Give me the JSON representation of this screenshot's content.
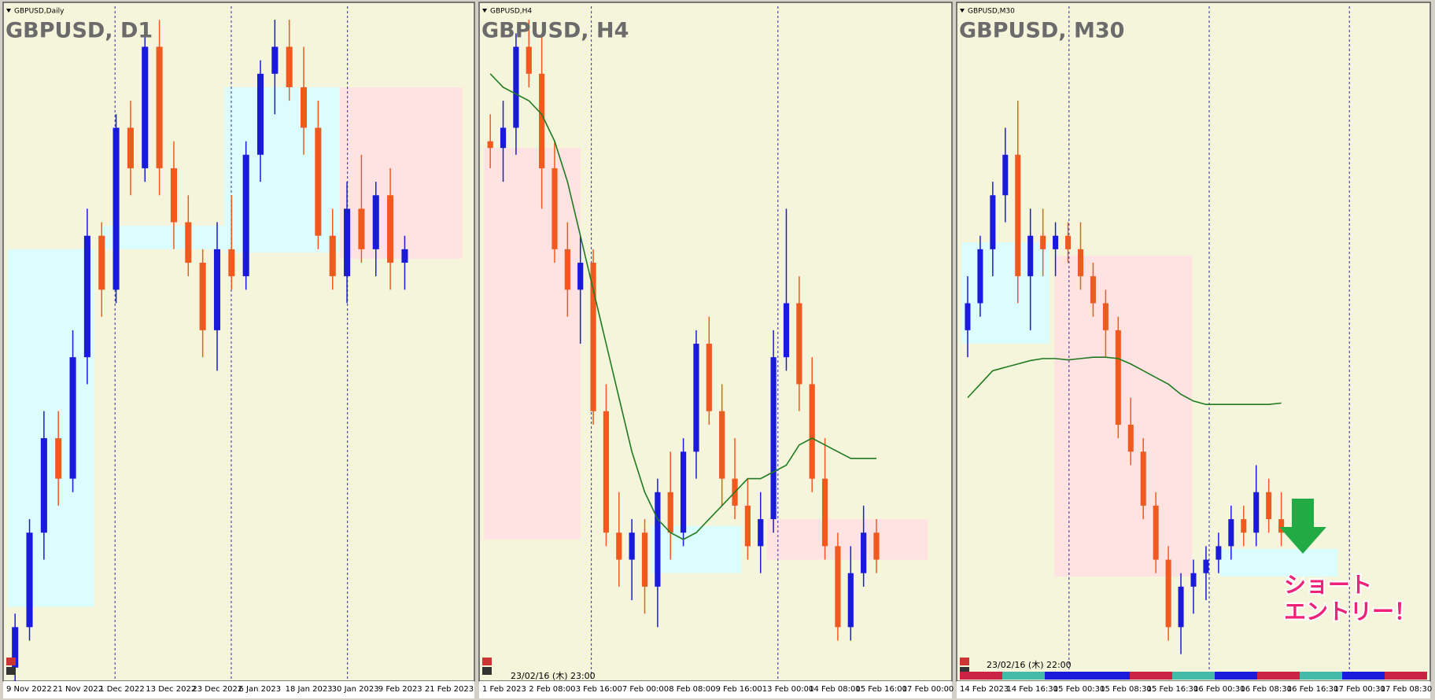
{
  "chart_data": [
    {
      "type": "candlestick",
      "symbol_label": "GBPUSD,Daily",
      "title": "GBPUSD, D1",
      "categories": [
        "9 Nov 2022",
        "21 Nov 2022",
        "1 Dec 2022",
        "13 Dec 2022",
        "23 Dec 2022",
        "6 Jan 2023",
        "18 Jan 2023",
        "30 Jan 2023",
        "9 Feb 2023",
        "21 Feb 2023"
      ],
      "ylim": [
        0,
        100
      ],
      "up_color": "#1a1adb",
      "down_color": "#f05a1e",
      "candles": [
        [
          2,
          10,
          0,
          8
        ],
        [
          8,
          24,
          6,
          22
        ],
        [
          22,
          40,
          18,
          36
        ],
        [
          36,
          40,
          26,
          30
        ],
        [
          30,
          52,
          28,
          48
        ],
        [
          48,
          70,
          44,
          66
        ],
        [
          66,
          68,
          54,
          58
        ],
        [
          58,
          84,
          56,
          82
        ],
        [
          82,
          86,
          72,
          76
        ],
        [
          76,
          96,
          74,
          94
        ],
        [
          94,
          98,
          72,
          76
        ],
        [
          76,
          80,
          64,
          68
        ],
        [
          68,
          72,
          60,
          62
        ],
        [
          62,
          64,
          48,
          52
        ],
        [
          52,
          68,
          46,
          64
        ],
        [
          64,
          72,
          58,
          60
        ],
        [
          60,
          80,
          58,
          78
        ],
        [
          78,
          92,
          74,
          90
        ],
        [
          90,
          98,
          84,
          94
        ],
        [
          94,
          98,
          86,
          88
        ],
        [
          88,
          94,
          78,
          82
        ],
        [
          82,
          86,
          64,
          66
        ],
        [
          66,
          70,
          58,
          60
        ],
        [
          60,
          74,
          56,
          70
        ],
        [
          70,
          78,
          62,
          64
        ],
        [
          64,
          74,
          60,
          72
        ],
        [
          72,
          76,
          58,
          62
        ],
        [
          62,
          66,
          58,
          64
        ]
      ],
      "zones": [
        {
          "from": 0,
          "to": 6,
          "low": 11,
          "high": 64,
          "color": "#dcfdfd"
        },
        {
          "from": 6.5,
          "to": 15,
          "low": 64,
          "high": 67.5,
          "color": "#dcfdfd"
        },
        {
          "from": 15,
          "to": 23,
          "low": 63.5,
          "high": 88,
          "color": "#dcfdfd"
        },
        {
          "from": 23,
          "to": 31.5,
          "low": 62.6,
          "high": 88,
          "color": "#ffe2e2"
        }
      ]
    },
    {
      "type": "candlestick",
      "symbol_label": "GBPUSD,H4",
      "title": "GBPUSD, H4",
      "timestamp": "23/02/16 (木) 23:00",
      "categories": [
        "1 Feb 2023",
        "2 Feb 08:00",
        "3 Feb 16:00",
        "7 Feb 00:00",
        "8 Feb 08:00",
        "9 Feb 16:00",
        "13 Feb 00:00",
        "14 Feb 08:00",
        "15 Feb 16:00",
        "17 Feb 00:00"
      ],
      "ylim": [
        0,
        100
      ],
      "up_color": "#1a1adb",
      "down_color": "#f05a1e",
      "ma_color": "#1f7a1f",
      "candles": [
        [
          80,
          84,
          76,
          79
        ],
        [
          79,
          86,
          74,
          82
        ],
        [
          82,
          96,
          78,
          94
        ],
        [
          94,
          98,
          88,
          90
        ],
        [
          90,
          96,
          70,
          76
        ],
        [
          76,
          80,
          62,
          64
        ],
        [
          64,
          68,
          54,
          58
        ],
        [
          58,
          66,
          50,
          62
        ],
        [
          62,
          64,
          38,
          40
        ],
        [
          40,
          44,
          20,
          22
        ],
        [
          22,
          28,
          14,
          18
        ],
        [
          18,
          24,
          12,
          22
        ],
        [
          22,
          24,
          10,
          14
        ],
        [
          14,
          30,
          8,
          28
        ],
        [
          28,
          34,
          18,
          22
        ],
        [
          22,
          36,
          20,
          34
        ],
        [
          34,
          52,
          30,
          50
        ],
        [
          50,
          54,
          38,
          40
        ],
        [
          40,
          44,
          26,
          30
        ],
        [
          30,
          36,
          24,
          26
        ],
        [
          26,
          30,
          18,
          20
        ],
        [
          20,
          28,
          16,
          24
        ],
        [
          24,
          52,
          22,
          48
        ],
        [
          48,
          70,
          46,
          56
        ],
        [
          56,
          60,
          40,
          44
        ],
        [
          44,
          48,
          28,
          30
        ],
        [
          30,
          36,
          18,
          20
        ],
        [
          20,
          22,
          6,
          8
        ],
        [
          8,
          20,
          6,
          16
        ],
        [
          16,
          26,
          14,
          22
        ],
        [
          22,
          24,
          16,
          18
        ]
      ],
      "ma": [
        90,
        88,
        87,
        86,
        84,
        80,
        74,
        66,
        58,
        50,
        42,
        34,
        28,
        24,
        22,
        21,
        22,
        24,
        26,
        28,
        30,
        30,
        31,
        32,
        35,
        36,
        35,
        34,
        33,
        33,
        33
      ],
      "zones": [
        {
          "from": 0,
          "to": 7.5,
          "low": 21,
          "high": 79,
          "color": "#ffe2e2"
        },
        {
          "from": 13,
          "to": 20,
          "low": 16,
          "high": 23,
          "color": "#dcfdfd"
        },
        {
          "from": 22,
          "to": 34.5,
          "low": 18,
          "high": 24,
          "color": "#ffe2e2"
        }
      ]
    },
    {
      "type": "candlestick",
      "symbol_label": "GBPUSD,M30",
      "title": "GBPUSD, M30",
      "timestamp": "23/02/16 (木) 22:00",
      "categories": [
        "14 Feb 2023",
        "14 Feb 16:30",
        "15 Feb 00:30",
        "15 Feb 08:30",
        "15 Feb 16:30",
        "16 Feb 00:30",
        "16 Feb 08:30",
        "16 Feb 16:30",
        "17 Feb 00:30",
        "17 Feb 08:30"
      ],
      "ylim": [
        0,
        100
      ],
      "up_color": "#1a1adb",
      "down_color": "#f05a1e",
      "ma_color": "#1f7a1f",
      "candles": [
        [
          52,
          60,
          48,
          56
        ],
        [
          56,
          66,
          54,
          64
        ],
        [
          64,
          74,
          60,
          72
        ],
        [
          72,
          82,
          68,
          78
        ],
        [
          78,
          86,
          56,
          60
        ],
        [
          60,
          70,
          52,
          66
        ],
        [
          66,
          70,
          60,
          64
        ],
        [
          64,
          68,
          60,
          66
        ],
        [
          66,
          68,
          62,
          64
        ],
        [
          64,
          68,
          58,
          60
        ],
        [
          60,
          62,
          54,
          56
        ],
        [
          56,
          58,
          48,
          52
        ],
        [
          52,
          54,
          36,
          38
        ],
        [
          38,
          42,
          32,
          34
        ],
        [
          34,
          36,
          24,
          26
        ],
        [
          26,
          28,
          16,
          18
        ],
        [
          18,
          20,
          6,
          8
        ],
        [
          8,
          16,
          4,
          14
        ],
        [
          14,
          18,
          10,
          16
        ],
        [
          16,
          20,
          12,
          18
        ],
        [
          18,
          22,
          16,
          20
        ],
        [
          20,
          26,
          18,
          24
        ],
        [
          24,
          26,
          20,
          22
        ],
        [
          22,
          32,
          20,
          28
        ],
        [
          28,
          30,
          22,
          24
        ],
        [
          24,
          28,
          20,
          22
        ]
      ],
      "ma": [
        42,
        44,
        46,
        46.5,
        47,
        47.5,
        47.8,
        47.8,
        47.6,
        47.8,
        48,
        48,
        47.8,
        47,
        46,
        45,
        44,
        42.5,
        41.5,
        41,
        41,
        41,
        41,
        41,
        41,
        41.2
      ],
      "zones": [
        {
          "from": 0,
          "to": 7,
          "low": 50,
          "high": 65,
          "color": "#dcfdfd"
        },
        {
          "from": 7.4,
          "to": 18.4,
          "low": 15.5,
          "high": 63,
          "color": "#ffe2e2"
        },
        {
          "from": 20.6,
          "to": 30,
          "low": 15.5,
          "high": 19.6,
          "color": "#dcfdfd"
        }
      ],
      "annotation": [
        "ショート",
        "エントリー！"
      ]
    }
  ]
}
